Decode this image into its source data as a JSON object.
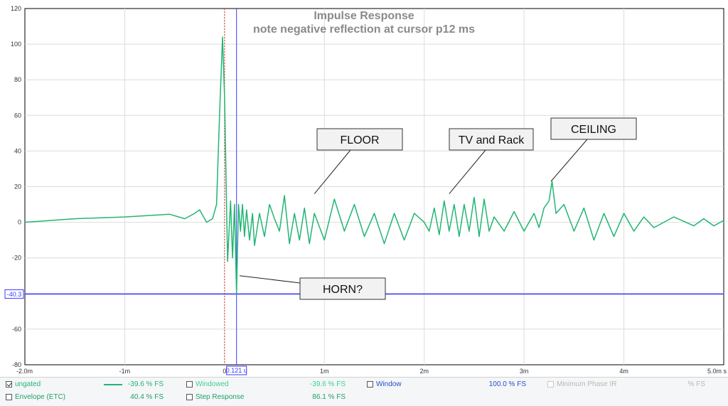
{
  "chart_data": {
    "type": "line",
    "title": "Impulse Response",
    "subtitle": "note negative reflection at cursor p12 ms",
    "xlim": [
      -2.0,
      5.0
    ],
    "ylim": [
      -80,
      120
    ],
    "x_ticks": [
      {
        "value": -2.0,
        "label": "-2.0m"
      },
      {
        "value": -1.0,
        "label": "-1m"
      },
      {
        "value": 0.0,
        "label": "0"
      },
      {
        "value": 1.0,
        "label": "1m"
      },
      {
        "value": 2.0,
        "label": "2m"
      },
      {
        "value": 3.0,
        "label": "3m"
      },
      {
        "value": 4.0,
        "label": "4m"
      },
      {
        "value": 5.0,
        "label": "5.0m s"
      }
    ],
    "y_ticks": [
      -80,
      -60,
      -40,
      -20,
      0,
      20,
      40,
      60,
      80,
      100,
      120
    ],
    "grid": true,
    "series": [
      {
        "name": "ungated",
        "color": "#22b573",
        "x": [
          -2.0,
          -1.5,
          -1.0,
          -0.7,
          -0.55,
          -0.4,
          -0.3,
          -0.25,
          -0.18,
          -0.12,
          -0.08,
          -0.05,
          -0.02,
          0.0,
          0.03,
          0.06,
          0.08,
          0.1,
          0.12,
          0.14,
          0.16,
          0.18,
          0.2,
          0.22,
          0.25,
          0.28,
          0.3,
          0.35,
          0.4,
          0.45,
          0.5,
          0.55,
          0.6,
          0.65,
          0.7,
          0.75,
          0.8,
          0.85,
          0.9,
          1.0,
          1.1,
          1.2,
          1.3,
          1.4,
          1.5,
          1.6,
          1.7,
          1.8,
          1.9,
          2.0,
          2.05,
          2.1,
          2.15,
          2.2,
          2.25,
          2.3,
          2.35,
          2.4,
          2.45,
          2.5,
          2.55,
          2.6,
          2.65,
          2.7,
          2.8,
          2.9,
          3.0,
          3.1,
          3.15,
          3.2,
          3.25,
          3.28,
          3.32,
          3.4,
          3.5,
          3.6,
          3.7,
          3.8,
          3.9,
          4.0,
          4.1,
          4.2,
          4.3,
          4.5,
          4.7,
          4.8,
          4.9,
          5.0
        ],
        "y": [
          0,
          2,
          3,
          4,
          4.5,
          2,
          5,
          7,
          0,
          2,
          10,
          60,
          104,
          70,
          -22,
          12,
          -20,
          10,
          -40,
          10,
          -5,
          10,
          -8,
          7,
          -10,
          5,
          -13,
          5,
          -8,
          10,
          2,
          -5,
          15,
          -12,
          5,
          -10,
          8,
          -12,
          5,
          -10,
          13,
          -5,
          10,
          -8,
          5,
          -12,
          5,
          -10,
          5,
          0,
          -5,
          8,
          -7,
          12,
          -5,
          10,
          -8,
          10,
          -5,
          14,
          -8,
          13,
          -5,
          3,
          -5,
          6,
          -5,
          5,
          -3,
          8,
          12,
          23,
          5,
          10,
          -5,
          8,
          -10,
          5,
          -8,
          5,
          -5,
          3,
          -3,
          3,
          -2,
          2,
          -2,
          1
        ]
      }
    ],
    "cursors": {
      "vertical_x": 0.12,
      "vertical_label": "0.121 u",
      "horizontal_y": -40.3,
      "horizontal_label": "-40.3",
      "reference_x": 0.0
    },
    "annotations": [
      {
        "text": "FLOOR",
        "target_x": 0.9,
        "target_y": 16
      },
      {
        "text": "TV and Rack",
        "target_x": 2.25,
        "target_y": 16
      },
      {
        "text": "CEILING",
        "target_x": 3.27,
        "target_y": 23
      },
      {
        "text": "HORN?",
        "target_x": 0.15,
        "target_y": -30
      }
    ]
  },
  "legend": {
    "rows": [
      [
        {
          "key": "ungated",
          "label": "ungated",
          "checked": true,
          "color": "#22b573",
          "value": "-39.6 % FS",
          "swatch": true
        },
        {
          "key": "windowed",
          "label": "Windowed",
          "checked": false,
          "color": "#3cd28f",
          "value": "-39.6 % FS"
        },
        {
          "key": "window",
          "label": "Window",
          "checked": false,
          "color": "#2a4bc8",
          "value": "100.0 % FS"
        },
        {
          "key": "min_phase",
          "label": "Minimum Phase IR",
          "checked": false,
          "color": "#b8b8b8",
          "value": "% FS",
          "disabled": true
        }
      ],
      [
        {
          "key": "envelope",
          "label": "Envelope (ETC)",
          "checked": false,
          "color": "#22a064",
          "value": "40.4 % FS"
        },
        {
          "key": "step",
          "label": "Step Response",
          "checked": false,
          "color": "#22a064",
          "value": "86.1 % FS"
        }
      ]
    ]
  }
}
